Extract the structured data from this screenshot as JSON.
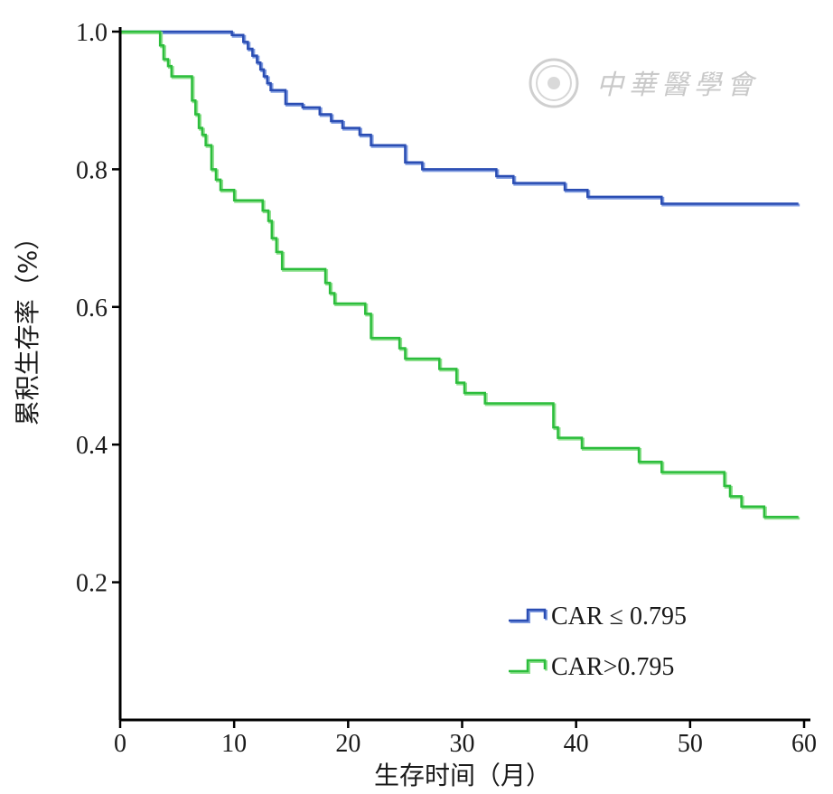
{
  "watermark": {
    "text": "中華醫學會",
    "color": "#c9c9c9"
  },
  "chart_data": {
    "type": "line",
    "step": true,
    "title": "",
    "xlabel": "生存时间（月）",
    "ylabel": "累积生存率（%）",
    "xlim": [
      0,
      60
    ],
    "ylim": [
      0,
      1.0
    ],
    "xticks": [
      "0",
      "10",
      "20",
      "30",
      "40",
      "50",
      "60"
    ],
    "xtick_values": [
      0,
      10,
      20,
      30,
      40,
      50,
      60
    ],
    "yticks": [
      "0.2",
      "0.4",
      "0.6",
      "0.8",
      "1.0"
    ],
    "ytick_values": [
      0.2,
      0.4,
      0.6,
      0.8,
      1.0
    ],
    "grid": false,
    "legend_position": "bottom-right",
    "series": [
      {
        "name": "CAR ≤ 0.795",
        "color": "#2a4db3",
        "shadow_color": "#7f9be0",
        "x": [
          0,
          9.8,
          10.8,
          11.2,
          11.6,
          12.0,
          12.3,
          12.6,
          12.9,
          13.2,
          14.5,
          16.0,
          17.5,
          18.5,
          19.5,
          21.0,
          22.0,
          25.0,
          26.5,
          33.0,
          34.5,
          39.0,
          41.0,
          47.5,
          59.5
        ],
        "y": [
          1.0,
          0.995,
          0.985,
          0.975,
          0.965,
          0.955,
          0.945,
          0.935,
          0.925,
          0.915,
          0.895,
          0.89,
          0.88,
          0.87,
          0.86,
          0.85,
          0.835,
          0.81,
          0.8,
          0.79,
          0.78,
          0.77,
          0.76,
          0.75,
          0.75
        ]
      },
      {
        "name": "CAR>0.795",
        "color": "#2cbd3c",
        "shadow_color": "#8fe08f",
        "x": [
          0,
          3.5,
          3.8,
          4.2,
          4.5,
          6.3,
          6.6,
          6.9,
          7.2,
          7.5,
          8.0,
          8.4,
          8.8,
          10.0,
          12.5,
          13.0,
          13.3,
          13.7,
          14.2,
          18.0,
          18.4,
          18.8,
          21.5,
          22.0,
          24.5,
          25.0,
          28.0,
          29.5,
          30.2,
          32.0,
          38.0,
          38.4,
          40.5,
          45.5,
          47.5,
          53.0,
          53.5,
          54.5,
          56.5,
          59.5
        ],
        "y": [
          1.0,
          0.98,
          0.96,
          0.95,
          0.935,
          0.9,
          0.88,
          0.86,
          0.85,
          0.835,
          0.8,
          0.785,
          0.77,
          0.755,
          0.74,
          0.725,
          0.7,
          0.68,
          0.655,
          0.635,
          0.62,
          0.605,
          0.59,
          0.555,
          0.54,
          0.525,
          0.51,
          0.49,
          0.475,
          0.46,
          0.425,
          0.41,
          0.395,
          0.375,
          0.36,
          0.34,
          0.325,
          0.31,
          0.295,
          0.295
        ]
      }
    ]
  }
}
